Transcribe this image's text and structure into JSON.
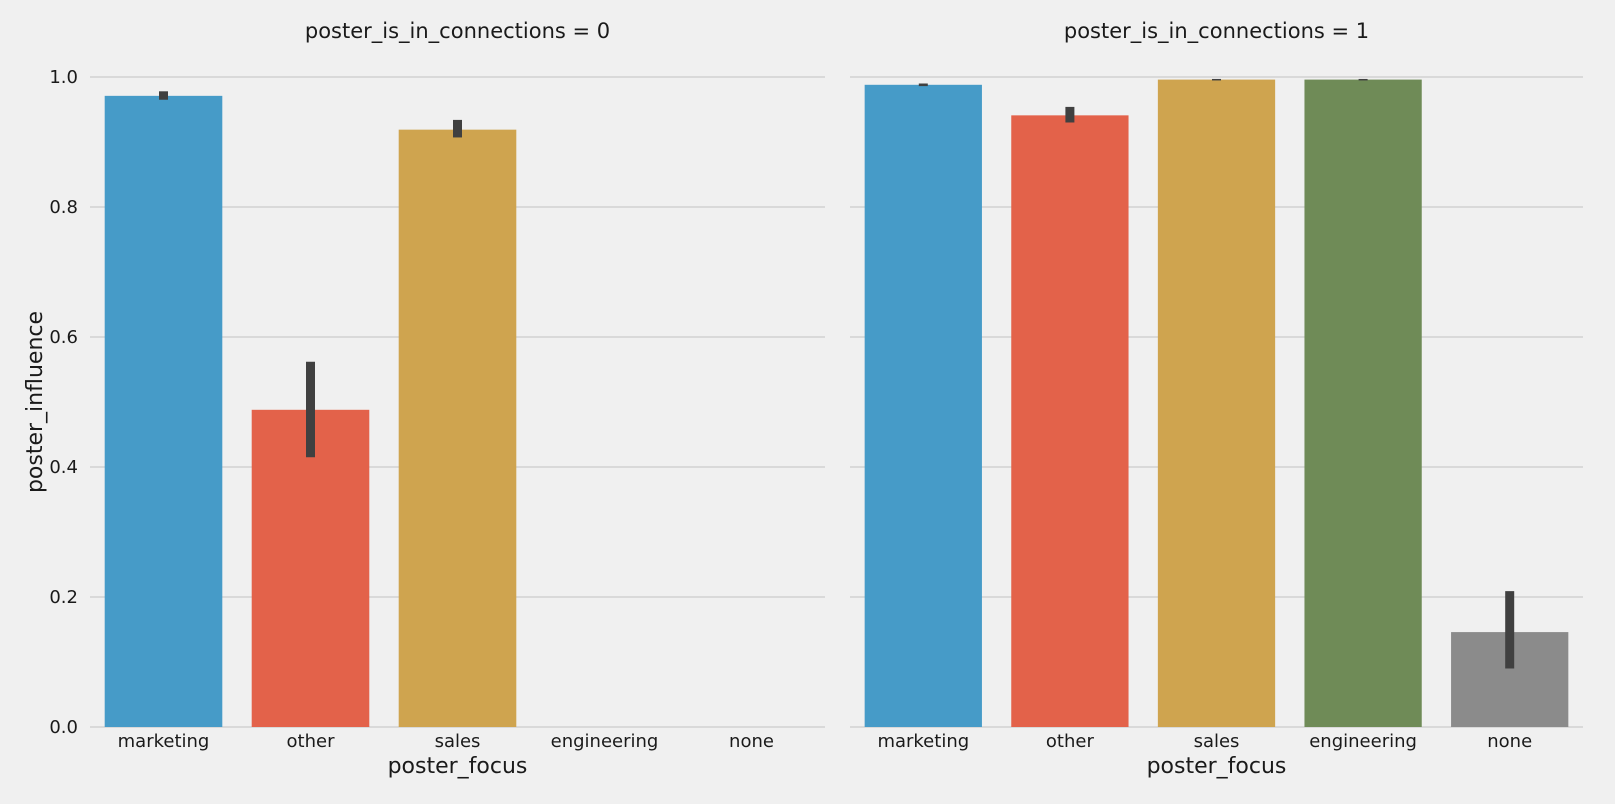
{
  "chart_data": [
    {
      "type": "bar",
      "title": "poster_is_in_connections = 0",
      "xlabel": "poster_focus",
      "ylabel": "poster_influence",
      "categories": [
        "marketing",
        "other",
        "sales",
        "engineering",
        "none"
      ],
      "values": [
        0.971,
        0.488,
        0.919,
        null,
        null
      ],
      "ci_low": [
        0.965,
        0.415,
        0.907,
        null,
        null
      ],
      "ci_high": [
        0.978,
        0.562,
        0.934,
        null,
        null
      ],
      "colors": [
        "#469bc8",
        "#e3624a",
        "#cfa44f",
        "#6f8b57",
        "#8b8b8b"
      ],
      "ylim": [
        0,
        1.0
      ],
      "yticks": [
        "0.0",
        "0.2",
        "0.4",
        "0.6",
        "0.8",
        "1.0"
      ],
      "grid": true
    },
    {
      "type": "bar",
      "title": "poster_is_in_connections = 1",
      "xlabel": "poster_focus",
      "ylabel": "",
      "categories": [
        "marketing",
        "other",
        "sales",
        "engineering",
        "none"
      ],
      "values": [
        0.988,
        0.941,
        0.996,
        0.996,
        0.146
      ],
      "ci_low": [
        0.986,
        0.93,
        0.995,
        0.995,
        0.09
      ],
      "ci_high": [
        0.99,
        0.954,
        0.997,
        0.997,
        0.209
      ],
      "colors": [
        "#469bc8",
        "#e3624a",
        "#cfa44f",
        "#6f8b57",
        "#8b8b8b"
      ],
      "ylim": [
        0,
        1.0
      ],
      "yticks": [
        "0.0",
        "0.2",
        "0.4",
        "0.6",
        "0.8",
        "1.0"
      ],
      "grid": true
    }
  ]
}
